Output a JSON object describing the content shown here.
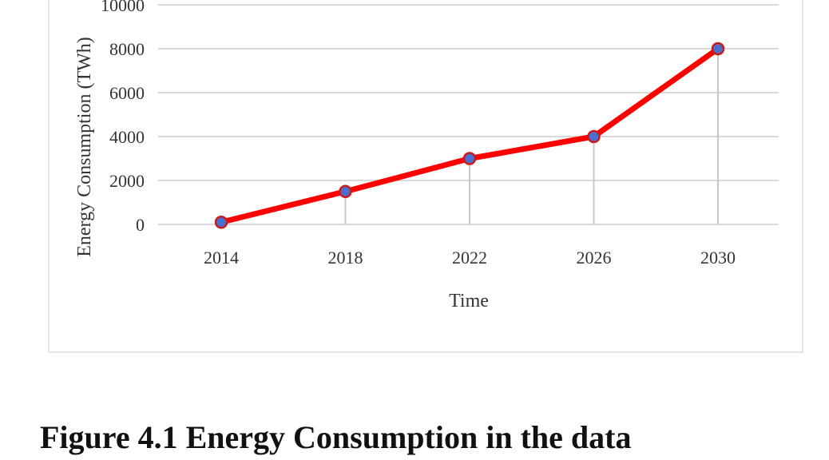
{
  "figure": {
    "caption": "Figure 4.1 Energy Consumption in the data"
  },
  "chart_data": {
    "type": "line",
    "title": "",
    "xlabel": "Time",
    "ylabel": "Energy Consumption (TWh)",
    "x": [
      "2014",
      "2018",
      "2022",
      "2026",
      "2030"
    ],
    "series": [
      {
        "values": [
          100,
          1500,
          3000,
          4000,
          8000
        ]
      }
    ],
    "yticks": [
      0,
      2000,
      4000,
      6000,
      8000,
      10000
    ],
    "ylim": [
      0,
      10000
    ],
    "grid": true,
    "legend": "none",
    "colors": {
      "line": "#ff0000",
      "marker_fill": "#4a6fd1",
      "marker_stroke": "#cc1a1a",
      "drop_line": "#c8c8c8",
      "grid": "#d9d9d9"
    }
  }
}
